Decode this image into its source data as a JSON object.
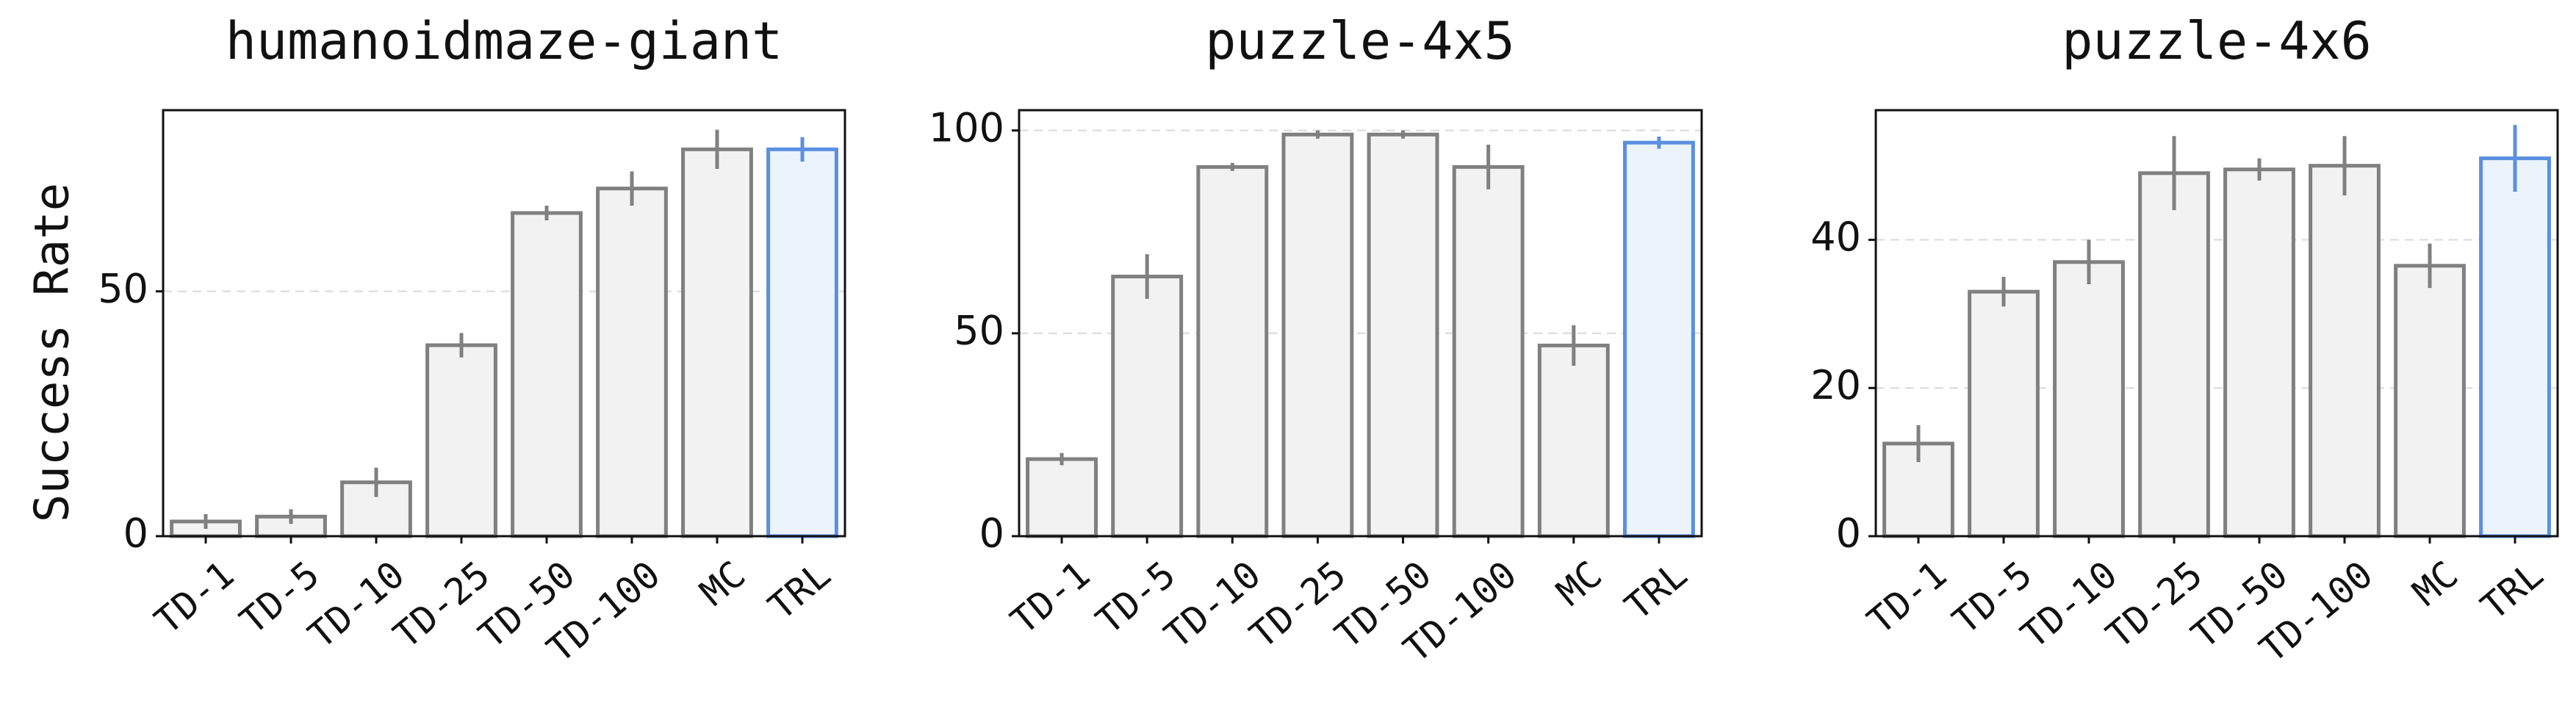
{
  "figure": {
    "ylabel": "Success Rate",
    "colors": {
      "bar_fill": "#f2f2f2",
      "bar_edge": "#808080",
      "highlight_fill": "#ebf3fd",
      "highlight_edge": "#5b8fe0",
      "highlight_text": "#5b8fe0",
      "grid": "#d9d9d9",
      "axis": "#111111"
    }
  },
  "chart_data": [
    {
      "type": "bar",
      "title": "humanoidmaze-giant",
      "ylabel": "Success Rate",
      "categories": [
        "TD-1",
        "TD-5",
        "TD-10",
        "TD-25",
        "TD-50",
        "TD-100",
        "MC",
        "TRL"
      ],
      "values": [
        3,
        4,
        11,
        39,
        66,
        71,
        79,
        79
      ],
      "errors": [
        1.5,
        1.5,
        3,
        2.5,
        1.5,
        3.5,
        4,
        2.5
      ],
      "highlight": "TRL",
      "ylim": [
        0,
        87
      ],
      "yticks": [
        0,
        50
      ],
      "grid": true
    },
    {
      "type": "bar",
      "title": "puzzle-4x5",
      "ylabel": "",
      "categories": [
        "TD-1",
        "TD-5",
        "TD-10",
        "TD-25",
        "TD-50",
        "TD-100",
        "MC",
        "TRL"
      ],
      "values": [
        19,
        64,
        91,
        99,
        99,
        91,
        47,
        97
      ],
      "errors": [
        1.5,
        5.5,
        1,
        1,
        1,
        5.5,
        5,
        1.5
      ],
      "highlight": "TRL",
      "ylim": [
        0,
        105
      ],
      "yticks": [
        0,
        50,
        100
      ],
      "grid": true
    },
    {
      "type": "bar",
      "title": "puzzle-4x6",
      "ylabel": "",
      "categories": [
        "TD-1",
        "TD-5",
        "TD-10",
        "TD-25",
        "TD-50",
        "TD-100",
        "MC",
        "TRL"
      ],
      "values": [
        12.5,
        33,
        37,
        49,
        49.5,
        50,
        36.5,
        51
      ],
      "errors": [
        2.5,
        2,
        3,
        5,
        1.5,
        4,
        3,
        4.5
      ],
      "highlight": "TRL",
      "ylim": [
        0,
        57.5
      ],
      "yticks": [
        0,
        20,
        40
      ],
      "grid": true
    }
  ]
}
